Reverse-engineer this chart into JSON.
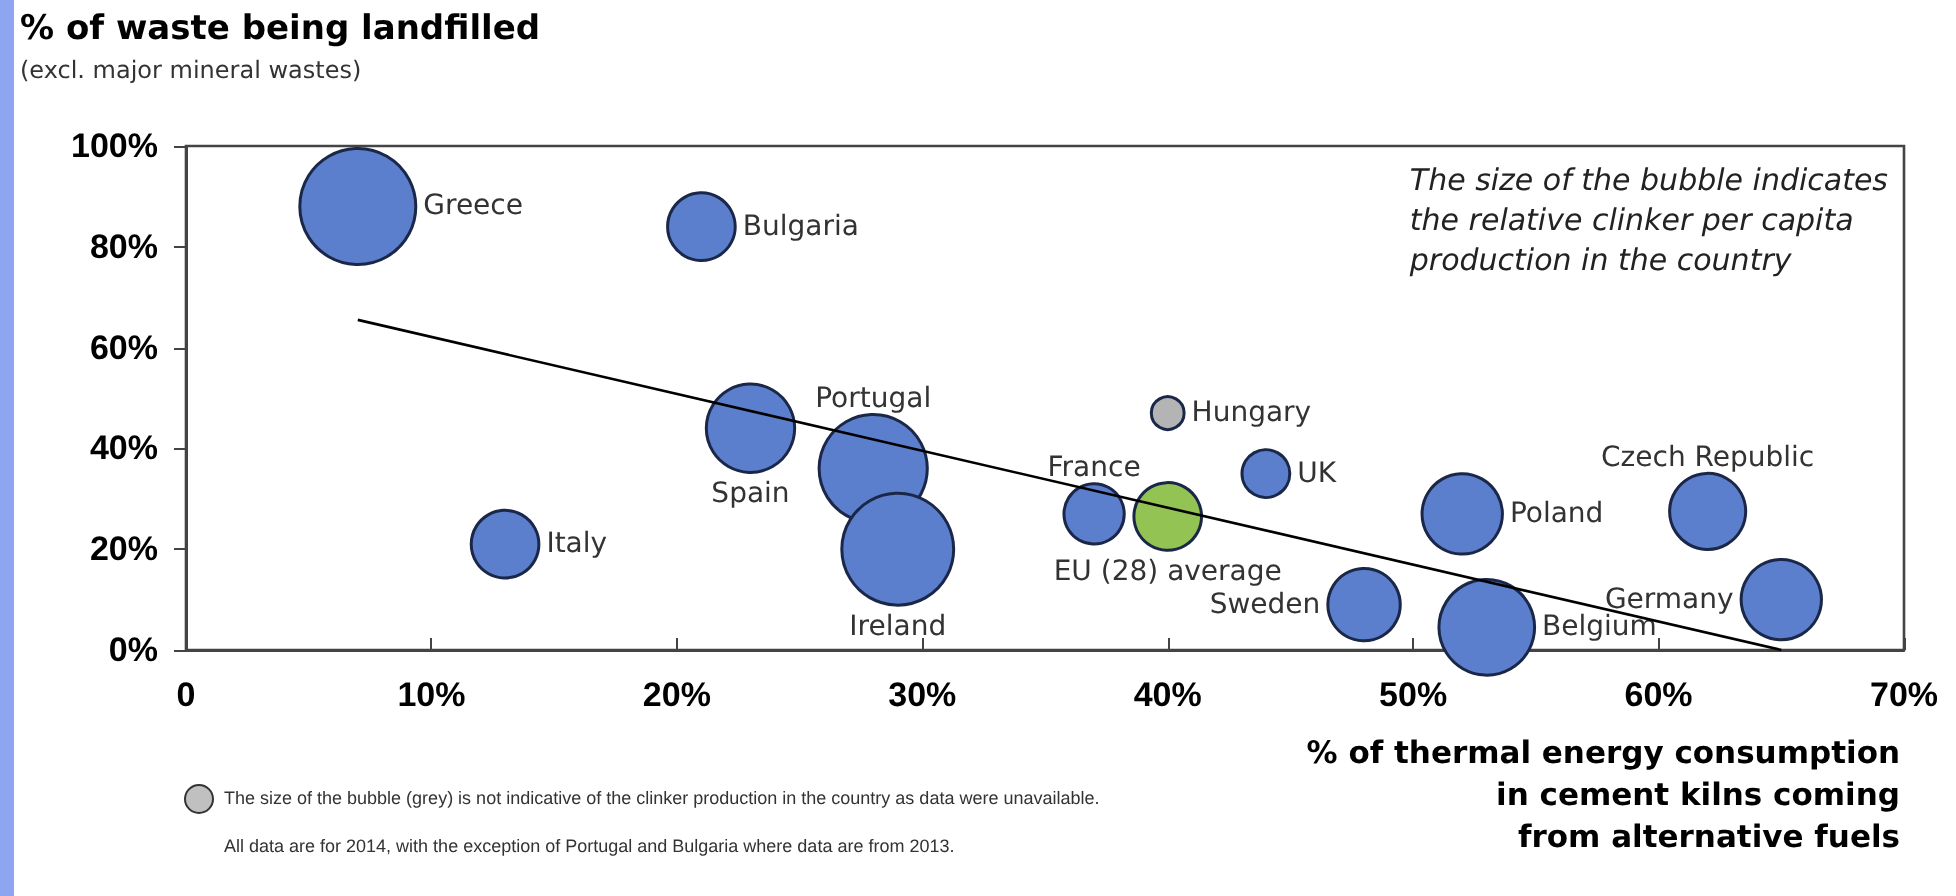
{
  "chart_data": {
    "type": "bubble",
    "title": "% of waste being landfilled",
    "subtitle": "(excl. major mineral wastes)",
    "xlabel": "% of thermal energy consumption\nin cement kilns coming\nfrom alternative fuels",
    "xlim": [
      0,
      70
    ],
    "xticks": [
      {
        "value": 0,
        "label": "0"
      },
      {
        "value": 10,
        "label": "10%"
      },
      {
        "value": 20,
        "label": "20%"
      },
      {
        "value": 30,
        "label": "30%"
      },
      {
        "value": 40,
        "label": "40%"
      },
      {
        "value": 50,
        "label": "50%"
      },
      {
        "value": 60,
        "label": "60%"
      },
      {
        "value": 70,
        "label": "70%"
      }
    ],
    "ylim": [
      0,
      100
    ],
    "yticks": [
      {
        "value": 0,
        "label": "0%"
      },
      {
        "value": 20,
        "label": "20%"
      },
      {
        "value": 40,
        "label": "40%"
      },
      {
        "value": 60,
        "label": "60%"
      },
      {
        "value": 80,
        "label": "80%"
      },
      {
        "value": 100,
        "label": "100%"
      }
    ],
    "grid": false,
    "legend": false,
    "annotations": [
      "The size of the bubble indicates\nthe relative clinker per capita\nproduction in the country",
      "The size of the bubble (grey) is not indicative of the clinker production in the country as data were unavailable.",
      "All data are for 2014,  with the exception of Portugal and Bulgaria where data are from 2013."
    ],
    "series": [
      {
        "name": "Greece",
        "color": "#5b7fcc",
        "x": [
          7
        ],
        "values": [
          88
        ],
        "sizes": [
          1
        ]
      },
      {
        "name": "Bulgaria",
        "color": "#5b7fcc",
        "x": [
          21
        ],
        "values": [
          84
        ],
        "sizes": [
          0.34
        ]
      },
      {
        "name": "Italy",
        "color": "#5b7fcc",
        "x": [
          13
        ],
        "values": [
          21
        ],
        "sizes": [
          0.34
        ]
      },
      {
        "name": "Spain",
        "color": "#5b7fcc",
        "x": [
          23
        ],
        "values": [
          44
        ],
        "sizes": [
          0.58
        ]
      },
      {
        "name": "Portugal",
        "color": "#5b7fcc",
        "x": [
          28
        ],
        "values": [
          36
        ],
        "sizes": [
          0.87
        ]
      },
      {
        "name": "Ireland",
        "color": "#5b7fcc",
        "x": [
          29
        ],
        "values": [
          20
        ],
        "sizes": [
          0.93
        ]
      },
      {
        "name": "France",
        "color": "#5b7fcc",
        "x": [
          37
        ],
        "values": [
          27
        ],
        "sizes": [
          0.27
        ]
      },
      {
        "name": "EU (28) average",
        "color": "#92c353",
        "x": [
          40
        ],
        "values": [
          26.5
        ],
        "sizes": [
          0.34
        ]
      },
      {
        "name": "Hungary",
        "color": "#b4b4b4",
        "x": [
          40
        ],
        "values": [
          47
        ],
        "sizes": [
          0.08
        ]
      },
      {
        "name": "UK",
        "color": "#5b7fcc",
        "x": [
          44
        ],
        "values": [
          35
        ],
        "sizes": [
          0.17
        ]
      },
      {
        "name": "Sweden",
        "color": "#5b7fcc",
        "x": [
          48
        ],
        "values": [
          9
        ],
        "sizes": [
          0.39
        ]
      },
      {
        "name": "Belgium",
        "color": "#5b7fcc",
        "x": [
          53
        ],
        "values": [
          4.5
        ],
        "sizes": [
          0.68
        ]
      },
      {
        "name": "Poland",
        "color": "#5b7fcc",
        "x": [
          52
        ],
        "values": [
          27
        ],
        "sizes": [
          0.48
        ]
      },
      {
        "name": "Czech Republic",
        "color": "#5b7fcc",
        "x": [
          62
        ],
        "values": [
          27.5
        ],
        "sizes": [
          0.43
        ]
      },
      {
        "name": "Germany",
        "color": "#5b7fcc",
        "x": [
          65
        ],
        "values": [
          10
        ],
        "sizes": [
          0.48
        ]
      },
      {
        "type": "line",
        "color": "#000000",
        "x": [
          7,
          65
        ],
        "values": [
          65.5,
          0
        ]
      }
    ]
  }
}
